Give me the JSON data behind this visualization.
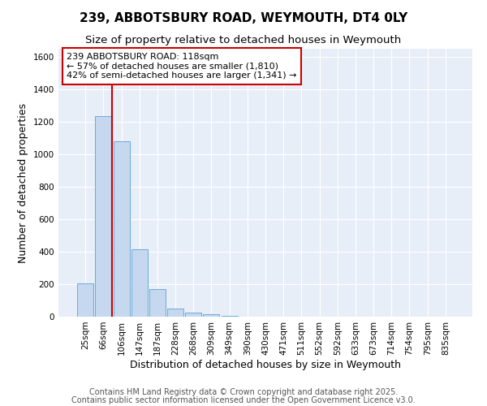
{
  "title_line1": "239, ABBOTSBURY ROAD, WEYMOUTH, DT4 0LY",
  "title_line2": "Size of property relative to detached houses in Weymouth",
  "xlabel": "Distribution of detached houses by size in Weymouth",
  "ylabel": "Number of detached properties",
  "categories": [
    "25sqm",
    "66sqm",
    "106sqm",
    "147sqm",
    "187sqm",
    "228sqm",
    "268sqm",
    "309sqm",
    "349sqm",
    "390sqm",
    "430sqm",
    "471sqm",
    "511sqm",
    "552sqm",
    "592sqm",
    "633sqm",
    "673sqm",
    "714sqm",
    "754sqm",
    "795sqm",
    "835sqm"
  ],
  "values": [
    207,
    1235,
    1080,
    415,
    172,
    50,
    25,
    15,
    5,
    0,
    0,
    0,
    0,
    0,
    0,
    0,
    0,
    0,
    0,
    0,
    0
  ],
  "bar_color": "#c5d8f0",
  "bar_edge_color": "#6aaad4",
  "vline_x": 1.5,
  "vline_color": "#cc0000",
  "ylim": [
    0,
    1650
  ],
  "yticks": [
    0,
    200,
    400,
    600,
    800,
    1000,
    1200,
    1400,
    1600
  ],
  "annotation_text": "239 ABBOTSBURY ROAD: 118sqm\n← 57% of detached houses are smaller (1,810)\n42% of semi-detached houses are larger (1,341) →",
  "footnote1": "Contains HM Land Registry data © Crown copyright and database right 2025.",
  "footnote2": "Contains public sector information licensed under the Open Government Licence v3.0.",
  "fig_bg_color": "#ffffff",
  "plot_bg_color": "#e8eef8",
  "grid_color": "#ffffff",
  "title_fontsize": 11,
  "subtitle_fontsize": 9.5,
  "axis_label_fontsize": 9,
  "tick_fontsize": 7.5,
  "annotation_fontsize": 8,
  "footnote_fontsize": 7
}
